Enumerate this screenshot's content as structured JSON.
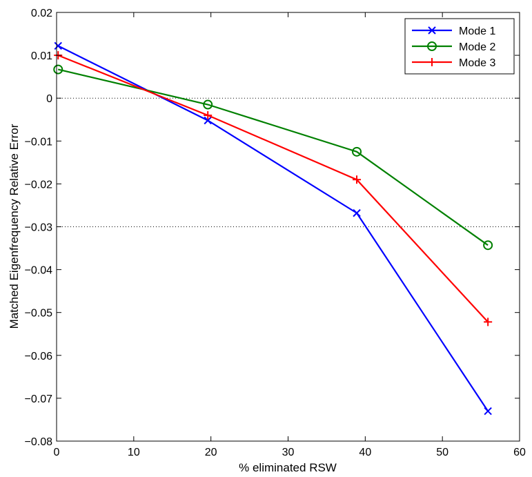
{
  "chart_data": {
    "type": "line",
    "title": "",
    "xlabel": "% eliminated RSW",
    "ylabel": "Matched Eigenfrequency Relative Error",
    "xlim": [
      0,
      60
    ],
    "ylim": [
      -0.08,
      0.02
    ],
    "x_ticks": [
      0,
      10,
      20,
      30,
      40,
      50,
      60
    ],
    "x_tick_labels": [
      "0",
      "10",
      "20",
      "30",
      "40",
      "50",
      "60"
    ],
    "y_ticks": [
      0.02,
      0.01,
      0,
      -0.01,
      -0.02,
      -0.03,
      -0.04,
      -0.05,
      -0.06,
      -0.07,
      -0.08
    ],
    "y_tick_labels": [
      "0.02",
      "0.01",
      "0",
      "−0.01",
      "−0.02",
      "−0.03",
      "−0.04",
      "−0.05",
      "−0.06",
      "−0.07",
      "−0.08"
    ],
    "reference_lines": [
      0,
      -0.03
    ],
    "grid": false,
    "legend_position": "top-right",
    "series": [
      {
        "name": "Mode 1",
        "color": "#0000ff",
        "marker": "x",
        "x": [
          0.2,
          19.6,
          38.9,
          55.9
        ],
        "y": [
          0.0122,
          -0.0052,
          -0.0268,
          -0.073
        ]
      },
      {
        "name": "Mode 2",
        "color": "#008000",
        "marker": "o",
        "x": [
          0.2,
          19.6,
          38.9,
          55.9
        ],
        "y": [
          0.0067,
          -0.0015,
          -0.0125,
          -0.0343
        ]
      },
      {
        "name": "Mode 3",
        "color": "#ff0000",
        "marker": "+",
        "x": [
          0.2,
          19.6,
          38.9,
          55.9
        ],
        "y": [
          0.01,
          -0.004,
          -0.019,
          -0.0522
        ]
      }
    ]
  }
}
